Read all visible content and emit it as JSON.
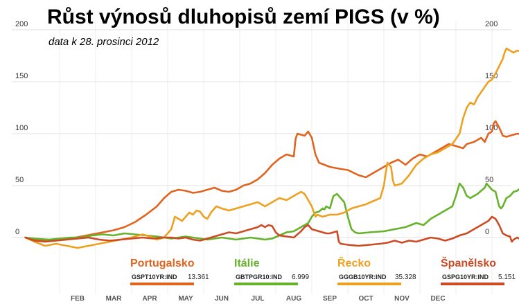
{
  "chart_data": {
    "type": "line",
    "title": "Růst výnosů dluhopisů zemí PIGS (v %)",
    "subtitle": "data k 28. prosinci 2012",
    "xlabel": "",
    "ylabel": "",
    "ylim": [
      -10,
      210
    ],
    "yticks": [
      0,
      50,
      100,
      150,
      200
    ],
    "y_label_positions": "left-and-right",
    "grid": true,
    "x_categories": [
      "FEB",
      "MAR",
      "APR",
      "MAY",
      "JUN",
      "JUL",
      "AUG",
      "SEP",
      "OCT",
      "NOV",
      "DEC"
    ],
    "x_start_month_index": 0,
    "x_end_month_index": 11.9,
    "legend_position": "bottom",
    "series": [
      {
        "name": "Portugalsko",
        "ticker": "GSPT10YR:IND",
        "value": "13.361",
        "color": "#e0641e",
        "points": [
          [
            0.05,
            0
          ],
          [
            0.3,
            -2
          ],
          [
            0.7,
            -3
          ],
          [
            1.0,
            -2
          ],
          [
            1.3,
            -1
          ],
          [
            1.6,
            1
          ],
          [
            1.9,
            3
          ],
          [
            2.2,
            5
          ],
          [
            2.5,
            7
          ],
          [
            2.8,
            10
          ],
          [
            3.1,
            15
          ],
          [
            3.4,
            22
          ],
          [
            3.7,
            30
          ],
          [
            3.9,
            38
          ],
          [
            4.1,
            44
          ],
          [
            4.3,
            46
          ],
          [
            4.5,
            45
          ],
          [
            4.7,
            43
          ],
          [
            4.9,
            44
          ],
          [
            5.1,
            46
          ],
          [
            5.3,
            48
          ],
          [
            5.5,
            45
          ],
          [
            5.7,
            44
          ],
          [
            5.9,
            46
          ],
          [
            6.1,
            50
          ],
          [
            6.3,
            52
          ],
          [
            6.5,
            56
          ],
          [
            6.7,
            62
          ],
          [
            6.9,
            70
          ],
          [
            7.1,
            76
          ],
          [
            7.3,
            80
          ],
          [
            7.5,
            78
          ],
          [
            7.55,
            95
          ],
          [
            7.6,
            100
          ],
          [
            7.8,
            98
          ],
          [
            7.9,
            102
          ],
          [
            8.0,
            96
          ],
          [
            8.1,
            80
          ],
          [
            8.2,
            72
          ],
          [
            8.5,
            68
          ],
          [
            8.8,
            66
          ],
          [
            9.0,
            65
          ],
          [
            9.3,
            60
          ],
          [
            9.5,
            58
          ],
          [
            9.8,
            64
          ],
          [
            10.0,
            68
          ],
          [
            10.2,
            72
          ],
          [
            10.4,
            75
          ],
          [
            10.6,
            70
          ],
          [
            10.8,
            76
          ],
          [
            11.0,
            80
          ],
          [
            11.2,
            78
          ],
          [
            11.4,
            82
          ],
          [
            11.6,
            86
          ],
          [
            11.8,
            90
          ],
          [
            12.0,
            88
          ],
          [
            12.2,
            86
          ],
          [
            12.3,
            90
          ],
          [
            12.5,
            92
          ],
          [
            12.7,
            96
          ],
          [
            12.8,
            92
          ],
          [
            12.9,
            100
          ],
          [
            13.0,
            102
          ],
          [
            13.05,
            110
          ],
          [
            13.1,
            112
          ],
          [
            13.2,
            106
          ],
          [
            13.3,
            98
          ],
          [
            13.4,
            97
          ],
          [
            13.5,
            98
          ],
          [
            13.7,
            100
          ],
          [
            13.9,
            99
          ],
          [
            14.0,
            102
          ]
        ]
      },
      {
        "name": "Itálie",
        "ticker": "GBTPGR10:IND",
        "value": "6.999",
        "color": "#66b22a",
        "points": [
          [
            0.05,
            0
          ],
          [
            0.3,
            -1
          ],
          [
            0.7,
            -2
          ],
          [
            1.0,
            -1
          ],
          [
            1.3,
            0
          ],
          [
            1.6,
            0
          ],
          [
            1.9,
            2
          ],
          [
            2.2,
            3
          ],
          [
            2.5,
            2
          ],
          [
            2.8,
            4
          ],
          [
            3.1,
            3
          ],
          [
            3.4,
            2
          ],
          [
            3.7,
            1
          ],
          [
            3.9,
            0
          ],
          [
            4.1,
            -1
          ],
          [
            4.3,
            0
          ],
          [
            4.5,
            1
          ],
          [
            4.7,
            0
          ],
          [
            4.9,
            -1
          ],
          [
            5.1,
            -2
          ],
          [
            5.3,
            -1
          ],
          [
            5.5,
            0
          ],
          [
            5.7,
            -1
          ],
          [
            5.9,
            -2
          ],
          [
            6.1,
            -1
          ],
          [
            6.3,
            0
          ],
          [
            6.5,
            -1
          ],
          [
            6.7,
            -2
          ],
          [
            6.9,
            -1
          ],
          [
            7.1,
            2
          ],
          [
            7.3,
            5
          ],
          [
            7.5,
            6
          ],
          [
            7.7,
            10
          ],
          [
            7.9,
            14
          ],
          [
            8.0,
            20
          ],
          [
            8.1,
            24
          ],
          [
            8.2,
            25
          ],
          [
            8.3,
            28
          ],
          [
            8.35,
            27
          ],
          [
            8.4,
            30
          ],
          [
            8.5,
            28
          ],
          [
            8.6,
            40
          ],
          [
            8.7,
            42
          ],
          [
            8.8,
            38
          ],
          [
            8.9,
            34
          ],
          [
            9.0,
            20
          ],
          [
            9.1,
            8
          ],
          [
            9.2,
            5
          ],
          [
            9.3,
            4
          ],
          [
            9.6,
            5
          ],
          [
            10.0,
            6
          ],
          [
            10.3,
            8
          ],
          [
            10.6,
            10
          ],
          [
            10.9,
            14
          ],
          [
            11.1,
            12
          ],
          [
            11.3,
            18
          ],
          [
            11.5,
            22
          ],
          [
            11.7,
            26
          ],
          [
            11.9,
            30
          ],
          [
            12.0,
            40
          ],
          [
            12.1,
            52
          ],
          [
            12.2,
            48
          ],
          [
            12.3,
            40
          ],
          [
            12.4,
            38
          ],
          [
            12.6,
            42
          ],
          [
            12.7,
            45
          ],
          [
            12.8,
            48
          ],
          [
            12.85,
            52
          ],
          [
            12.9,
            50
          ],
          [
            13.0,
            46
          ],
          [
            13.1,
            44
          ],
          [
            13.2,
            30
          ],
          [
            13.25,
            28
          ],
          [
            13.3,
            30
          ],
          [
            13.4,
            38
          ],
          [
            13.5,
            40
          ],
          [
            13.6,
            44
          ],
          [
            13.7,
            45
          ],
          [
            13.8,
            48
          ],
          [
            14.0,
            49
          ]
        ]
      },
      {
        "name": "Řecko",
        "ticker": "GGGB10YR:IND",
        "value": "35.328",
        "color": "#eea020",
        "points": [
          [
            0.05,
            0
          ],
          [
            0.3,
            -4
          ],
          [
            0.6,
            -8
          ],
          [
            0.9,
            -6
          ],
          [
            1.2,
            -8
          ],
          [
            1.5,
            -10
          ],
          [
            1.8,
            -8
          ],
          [
            2.1,
            -6
          ],
          [
            2.4,
            -4
          ],
          [
            2.7,
            -2
          ],
          [
            3.0,
            0
          ],
          [
            3.3,
            3
          ],
          [
            3.5,
            1
          ],
          [
            3.7,
            -2
          ],
          [
            3.9,
            0
          ],
          [
            4.0,
            4
          ],
          [
            4.1,
            8
          ],
          [
            4.2,
            20
          ],
          [
            4.3,
            18
          ],
          [
            4.4,
            16
          ],
          [
            4.5,
            20
          ],
          [
            4.6,
            24
          ],
          [
            4.7,
            22
          ],
          [
            4.8,
            26
          ],
          [
            4.9,
            25
          ],
          [
            5.0,
            20
          ],
          [
            5.1,
            18
          ],
          [
            5.2,
            24
          ],
          [
            5.35,
            30
          ],
          [
            5.5,
            28
          ],
          [
            5.7,
            26
          ],
          [
            5.9,
            28
          ],
          [
            6.1,
            30
          ],
          [
            6.3,
            32
          ],
          [
            6.5,
            34
          ],
          [
            6.7,
            30
          ],
          [
            6.9,
            34
          ],
          [
            7.1,
            38
          ],
          [
            7.3,
            36
          ],
          [
            7.5,
            40
          ],
          [
            7.7,
            44
          ],
          [
            7.8,
            42
          ],
          [
            7.9,
            36
          ],
          [
            8.0,
            30
          ],
          [
            8.05,
            25
          ],
          [
            8.1,
            20
          ],
          [
            8.15,
            22
          ],
          [
            8.3,
            20
          ],
          [
            8.5,
            22
          ],
          [
            8.7,
            22
          ],
          [
            8.9,
            24
          ],
          [
            9.1,
            28
          ],
          [
            9.3,
            30
          ],
          [
            9.5,
            32
          ],
          [
            9.7,
            35
          ],
          [
            9.9,
            38
          ],
          [
            10.0,
            50
          ],
          [
            10.05,
            62
          ],
          [
            10.1,
            72
          ],
          [
            10.2,
            68
          ],
          [
            10.25,
            55
          ],
          [
            10.3,
            50
          ],
          [
            10.5,
            52
          ],
          [
            10.7,
            60
          ],
          [
            10.9,
            70
          ],
          [
            11.1,
            76
          ],
          [
            11.3,
            80
          ],
          [
            11.5,
            82
          ],
          [
            11.7,
            86
          ],
          [
            11.9,
            90
          ],
          [
            12.0,
            95
          ],
          [
            12.1,
            100
          ],
          [
            12.2,
            115
          ],
          [
            12.3,
            125
          ],
          [
            12.4,
            130
          ],
          [
            12.5,
            128
          ],
          [
            12.6,
            135
          ],
          [
            12.7,
            140
          ],
          [
            12.8,
            145
          ],
          [
            12.9,
            150
          ],
          [
            13.0,
            152
          ],
          [
            13.1,
            158
          ],
          [
            13.2,
            165
          ],
          [
            13.3,
            172
          ],
          [
            13.35,
            178
          ],
          [
            13.4,
            182
          ],
          [
            13.5,
            180
          ],
          [
            13.6,
            178
          ],
          [
            13.7,
            180
          ],
          [
            13.8,
            179
          ],
          [
            13.9,
            181
          ],
          [
            13.95,
            186
          ],
          [
            14.0,
            183
          ]
        ]
      },
      {
        "name": "Španělsko",
        "ticker": "GSPG10YR:IND",
        "value": "5.151",
        "color": "#cc4a24",
        "points": [
          [
            0.05,
            0
          ],
          [
            0.3,
            -3
          ],
          [
            0.6,
            -4
          ],
          [
            0.9,
            -3
          ],
          [
            1.2,
            -2
          ],
          [
            1.5,
            -1
          ],
          [
            1.8,
            0
          ],
          [
            2.1,
            -2
          ],
          [
            2.4,
            -3
          ],
          [
            2.7,
            -2
          ],
          [
            3.0,
            -1
          ],
          [
            3.3,
            0
          ],
          [
            3.6,
            -1
          ],
          [
            3.9,
            0
          ],
          [
            4.1,
            0
          ],
          [
            4.3,
            -1
          ],
          [
            4.5,
            0
          ],
          [
            4.7,
            -2
          ],
          [
            4.9,
            -3
          ],
          [
            5.1,
            -1
          ],
          [
            5.3,
            1
          ],
          [
            5.5,
            3
          ],
          [
            5.7,
            5
          ],
          [
            5.9,
            4
          ],
          [
            6.1,
            6
          ],
          [
            6.3,
            8
          ],
          [
            6.5,
            10
          ],
          [
            6.6,
            12
          ],
          [
            6.7,
            10
          ],
          [
            6.8,
            12
          ],
          [
            6.9,
            11
          ],
          [
            7.0,
            5
          ],
          [
            7.1,
            2
          ],
          [
            7.3,
            1
          ],
          [
            7.5,
            0
          ],
          [
            7.7,
            6
          ],
          [
            7.8,
            10
          ],
          [
            7.9,
            12
          ],
          [
            8.0,
            8
          ],
          [
            8.2,
            6
          ],
          [
            8.4,
            4
          ],
          [
            8.5,
            4
          ],
          [
            8.7,
            6
          ],
          [
            8.75,
            -4
          ],
          [
            8.8,
            -6
          ],
          [
            9.0,
            -7
          ],
          [
            9.3,
            -8
          ],
          [
            9.6,
            -7
          ],
          [
            9.9,
            -6
          ],
          [
            10.1,
            -5
          ],
          [
            10.3,
            -3
          ],
          [
            10.5,
            -5
          ],
          [
            10.7,
            -3
          ],
          [
            10.9,
            -4
          ],
          [
            11.1,
            -2
          ],
          [
            11.3,
            0
          ],
          [
            11.5,
            -1
          ],
          [
            11.7,
            -3
          ],
          [
            11.9,
            -1
          ],
          [
            12.1,
            2
          ],
          [
            12.3,
            4
          ],
          [
            12.5,
            8
          ],
          [
            12.7,
            12
          ],
          [
            12.9,
            16
          ],
          [
            13.0,
            20
          ],
          [
            13.1,
            18
          ],
          [
            13.2,
            12
          ],
          [
            13.3,
            4
          ],
          [
            13.4,
            2
          ],
          [
            13.5,
            1
          ],
          [
            13.55,
            -4
          ],
          [
            13.6,
            -2
          ],
          [
            13.7,
            0
          ],
          [
            13.8,
            -2
          ],
          [
            13.9,
            -3
          ],
          [
            14.0,
            -3
          ]
        ]
      }
    ]
  }
}
